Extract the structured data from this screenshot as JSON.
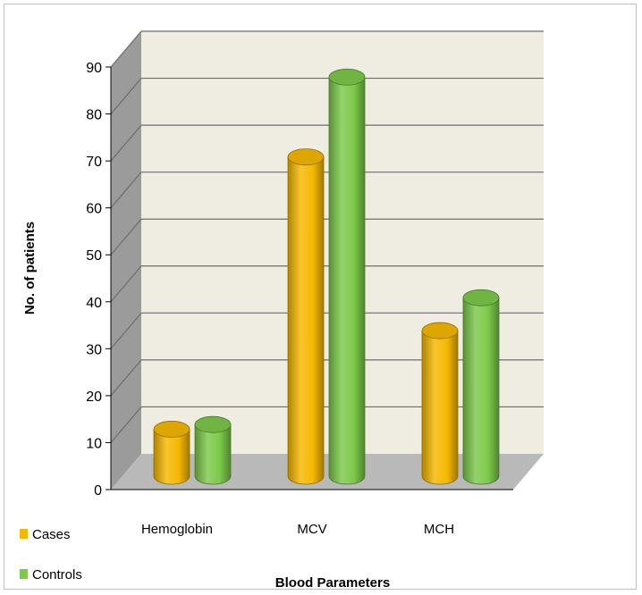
{
  "chart_data": {
    "type": "bar",
    "style": "3d-cylinder",
    "categories": [
      "Hemoglobin",
      "MCV",
      "MCH"
    ],
    "series": [
      {
        "name": "Cases",
        "color": "#f5b800",
        "values": [
          10,
          68,
          31
        ]
      },
      {
        "name": "Controls",
        "color": "#7cc94a",
        "values": [
          11,
          85,
          38
        ]
      }
    ],
    "title": "",
    "xlabel": "Blood Parameters",
    "ylabel": "No. of patients",
    "ylim": [
      0,
      90
    ],
    "yticks": [
      0,
      10,
      20,
      30,
      40,
      50,
      60,
      70,
      80,
      90
    ],
    "grid": true,
    "legend": "bottom-left",
    "colors": {
      "wall": "#efede2",
      "side_wall": "#9b9b9b",
      "floor": "#b9b9b9",
      "grid": "#6d6d6d"
    }
  }
}
